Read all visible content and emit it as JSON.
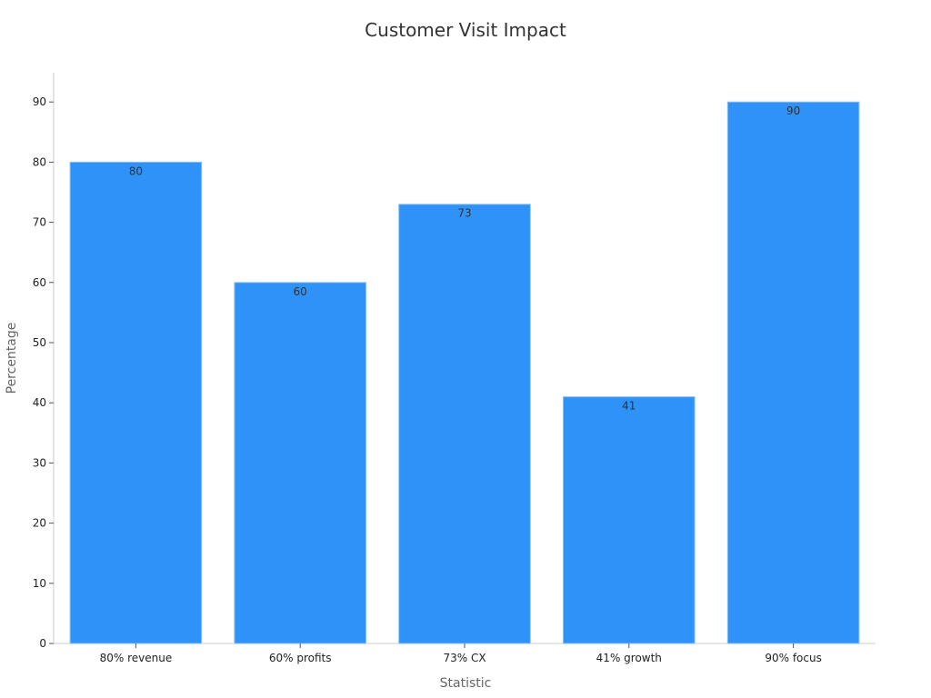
{
  "chart_data": {
    "type": "bar",
    "title": "Customer Visit Impact",
    "xlabel": "Statistic",
    "ylabel": "Percentage",
    "categories": [
      "80% revenue",
      "60% profits",
      "73% CX",
      "41% growth",
      "90% focus"
    ],
    "values": [
      80,
      60,
      73,
      41,
      90
    ],
    "ylim": [
      0,
      95
    ],
    "yticks": [
      0,
      10,
      20,
      30,
      40,
      50,
      60,
      70,
      80,
      90
    ],
    "grid": false,
    "data_labels": true,
    "colors": {
      "bar": "#2f92f8",
      "bar_edge": "#8ec2f5"
    }
  }
}
